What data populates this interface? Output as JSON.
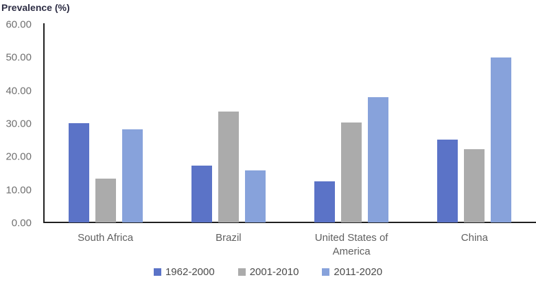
{
  "chart_data": {
    "type": "bar",
    "title": "Prevalence (%)",
    "ylabel": "Prevalence (%)",
    "xlabel": "",
    "categories": [
      "South Africa",
      "Brazil",
      "United States of America",
      "China"
    ],
    "series": [
      {
        "name": "1962-2000",
        "color": "#5B73C7",
        "values": [
          29.9,
          17.1,
          12.5,
          25.0
        ]
      },
      {
        "name": "2001-2010",
        "color": "#ABABAB",
        "values": [
          13.3,
          33.6,
          30.3,
          22.2
        ]
      },
      {
        "name": "2011-2020",
        "color": "#87A2DB",
        "values": [
          28.1,
          15.8,
          37.8,
          49.9
        ]
      }
    ],
    "ylim": [
      0,
      60
    ],
    "ytick_step": 10,
    "ytick_decimals": 2,
    "grid": false,
    "legend_position": "bottom",
    "colors": {
      "axis_line": "#1f1f1f",
      "tick_text": "#6f6f6f",
      "category_text": "#5f5f5f",
      "legend_text": "#4a4a4a",
      "title_text": "#2d2d44"
    }
  }
}
